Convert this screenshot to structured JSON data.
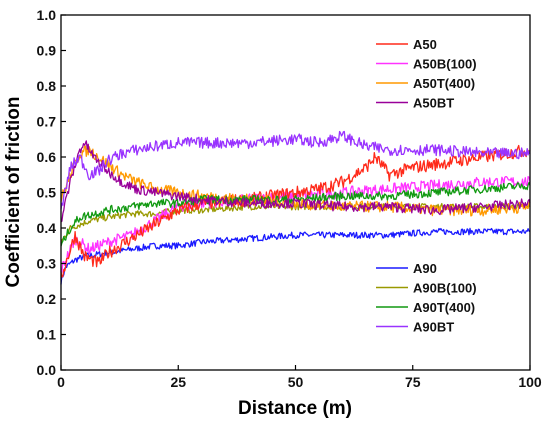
{
  "chart_data": {
    "type": "line",
    "title": "",
    "xlabel": "Distance (m)",
    "ylabel": "Coefficient of friction",
    "xlim": [
      0,
      100
    ],
    "ylim": [
      0.0,
      1.0
    ],
    "x_ticks": [
      "0",
      "25",
      "50",
      "75",
      "100"
    ],
    "y_ticks": [
      "0.0",
      "0.1",
      "0.2",
      "0.3",
      "0.4",
      "0.5",
      "0.6",
      "0.7",
      "0.8",
      "0.9",
      "1.0"
    ],
    "grid": false,
    "legend_groups": [
      {
        "placement": "top-right",
        "entries": [
          "A50",
          "A50B(100)",
          "A50T(400)",
          "A50BT"
        ]
      },
      {
        "placement": "bottom-right",
        "entries": [
          "A90",
          "A90B(100)",
          "A90T(400)",
          "A90BT"
        ]
      }
    ],
    "series": [
      {
        "name": "A50",
        "color": "#ff2a1a",
        "x": [
          0,
          3,
          5,
          8,
          10,
          15,
          20,
          25,
          30,
          40,
          50,
          55,
          60,
          65,
          67,
          70,
          75,
          80,
          85,
          90,
          95,
          100
        ],
        "y": [
          0.26,
          0.38,
          0.32,
          0.3,
          0.33,
          0.37,
          0.41,
          0.45,
          0.47,
          0.48,
          0.5,
          0.51,
          0.53,
          0.57,
          0.6,
          0.55,
          0.57,
          0.58,
          0.59,
          0.6,
          0.61,
          0.62
        ]
      },
      {
        "name": "A50B(100)",
        "color": "#ff33ff",
        "x": [
          0,
          3,
          6,
          10,
          15,
          20,
          25,
          30,
          40,
          50,
          60,
          70,
          80,
          90,
          100
        ],
        "y": [
          0.28,
          0.37,
          0.34,
          0.36,
          0.38,
          0.42,
          0.46,
          0.47,
          0.48,
          0.49,
          0.5,
          0.51,
          0.52,
          0.53,
          0.53
        ]
      },
      {
        "name": "A50T(400)",
        "color": "#ff9900",
        "x": [
          0,
          2,
          4,
          6,
          8,
          10,
          13,
          16,
          20,
          25,
          30,
          40,
          50,
          60,
          70,
          80,
          90,
          100
        ],
        "y": [
          0.48,
          0.55,
          0.61,
          0.62,
          0.6,
          0.58,
          0.55,
          0.53,
          0.51,
          0.5,
          0.49,
          0.48,
          0.47,
          0.46,
          0.46,
          0.45,
          0.45,
          0.46
        ]
      },
      {
        "name": "A50BT",
        "color": "#990099",
        "x": [
          0,
          2,
          4,
          5,
          7,
          10,
          13,
          16,
          20,
          25,
          30,
          40,
          50,
          60,
          70,
          80,
          90,
          100
        ],
        "y": [
          0.42,
          0.53,
          0.62,
          0.64,
          0.6,
          0.56,
          0.53,
          0.51,
          0.5,
          0.49,
          0.48,
          0.47,
          0.47,
          0.46,
          0.46,
          0.45,
          0.46,
          0.47
        ]
      },
      {
        "name": "A90",
        "color": "#1a1aff",
        "x": [
          0,
          1,
          3,
          5,
          10,
          15,
          20,
          25,
          30,
          40,
          50,
          60,
          70,
          80,
          90,
          100
        ],
        "y": [
          0.25,
          0.29,
          0.31,
          0.32,
          0.33,
          0.34,
          0.35,
          0.35,
          0.36,
          0.37,
          0.38,
          0.38,
          0.38,
          0.39,
          0.39,
          0.39
        ]
      },
      {
        "name": "A90B(100)",
        "color": "#999900",
        "x": [
          0,
          2,
          4,
          6,
          10,
          15,
          20,
          25,
          30,
          40,
          50,
          60,
          70,
          80,
          90,
          100
        ],
        "y": [
          0.36,
          0.4,
          0.41,
          0.42,
          0.43,
          0.44,
          0.44,
          0.45,
          0.45,
          0.46,
          0.46,
          0.46,
          0.46,
          0.46,
          0.46,
          0.46
        ]
      },
      {
        "name": "A90T(400)",
        "color": "#119911",
        "x": [
          0,
          2,
          4,
          7,
          10,
          15,
          20,
          25,
          30,
          40,
          50,
          60,
          70,
          80,
          90,
          100
        ],
        "y": [
          0.35,
          0.4,
          0.43,
          0.44,
          0.45,
          0.46,
          0.47,
          0.47,
          0.48,
          0.48,
          0.48,
          0.49,
          0.49,
          0.5,
          0.51,
          0.52
        ]
      },
      {
        "name": "A90BT",
        "color": "#9933ff",
        "x": [
          0,
          2,
          4,
          6,
          8,
          10,
          13,
          16,
          20,
          25,
          30,
          40,
          50,
          55,
          60,
          65,
          70,
          80,
          90,
          100
        ],
        "y": [
          0.45,
          0.57,
          0.6,
          0.55,
          0.56,
          0.59,
          0.61,
          0.62,
          0.63,
          0.64,
          0.64,
          0.64,
          0.65,
          0.64,
          0.66,
          0.63,
          0.62,
          0.62,
          0.61,
          0.61
        ]
      }
    ]
  }
}
